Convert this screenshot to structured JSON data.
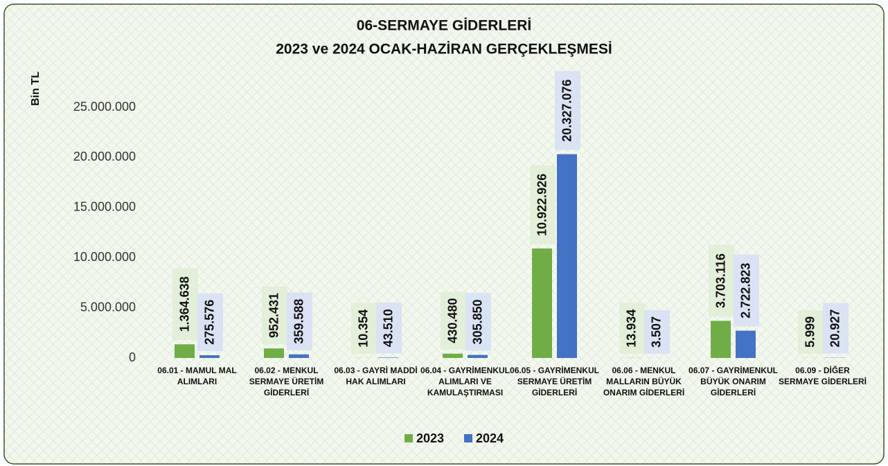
{
  "chart_data": {
    "type": "bar",
    "title": [
      "06-SERMAYE GİDERLERİ",
      "2023 ve 2024 OCAK-HAZİRAN GERÇEKLEŞMESİ"
    ],
    "y_label": "Bin TL",
    "categories": [
      "06.01 - MAMUL MAL ALIMLARI",
      "06.02 - MENKUL SERMAYE ÜRETİM GİDERLERİ",
      "06.03 - GAYRİ MADDİ HAK ALIMLARI",
      "06.04 - GAYRİMENKUL ALIMLARI VE KAMULAŞTIRMASI",
      "06.05 - GAYRİMENKUL SERMAYE ÜRETİM GİDERLERİ",
      "06.06 - MENKUL MALLARIN BÜYÜK ONARIM GİDERLERİ",
      "06.07 - GAYRİMENKUL BÜYÜK ONARIM GİDERLERİ",
      "06.09 - DİĞER SERMAYE GİDERLERİ"
    ],
    "series": [
      {
        "name": "2023",
        "color": "#70ad47",
        "label_box": "#e2efd9",
        "values": [
          1364638,
          952431,
          10354,
          430480,
          10922926,
          13934,
          3703116,
          5999
        ],
        "value_labels": [
          "1.364.638",
          "952.431",
          "10.354",
          "430.480",
          "10.922.926",
          "13.934",
          "3.703.116",
          "5.999"
        ]
      },
      {
        "name": "2024",
        "color": "#4472c4",
        "label_box": "#dae3f3",
        "values": [
          275576,
          359588,
          43510,
          305850,
          20327076,
          3507,
          2722823,
          20927
        ],
        "value_labels": [
          "275.576",
          "359.588",
          "43.510",
          "305.850",
          "20.327.076",
          "3.507",
          "2.722.823",
          "20.927"
        ]
      }
    ],
    "ylim": [
      0,
      25000000
    ],
    "yticks": [
      0,
      {
        "value": 5000000,
        "label": "5.000.000"
      },
      {
        "value": 10000000,
        "label": "10.000.000"
      },
      {
        "value": 15000000,
        "label": "15.000.000"
      },
      {
        "value": 20000000,
        "label": "20.000.000"
      },
      {
        "value": 25000000,
        "label": "25.000.000"
      }
    ],
    "grid": false,
    "legend": "bottom"
  }
}
